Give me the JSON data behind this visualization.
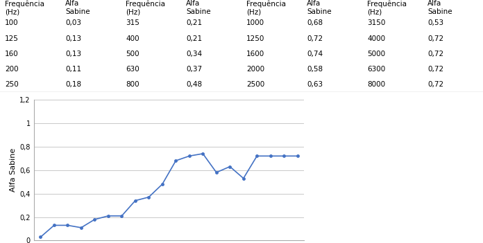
{
  "frequencies": [
    100,
    125,
    160,
    200,
    250,
    315,
    400,
    500,
    630,
    800,
    1000,
    1250,
    1600,
    2000,
    2500,
    3150,
    4000,
    5000,
    6300,
    8000
  ],
  "alpha_sabine": [
    0.03,
    0.13,
    0.13,
    0.11,
    0.18,
    0.21,
    0.21,
    0.34,
    0.37,
    0.48,
    0.68,
    0.72,
    0.74,
    0.58,
    0.63,
    0.53,
    0.72,
    0.72,
    0.72,
    0.72
  ],
  "table_data": {
    "freq1": [
      100,
      125,
      160,
      200,
      250
    ],
    "alpha1": [
      "0,03",
      "0,13",
      "0,13",
      "0,11",
      "0,18"
    ],
    "freq2": [
      315,
      400,
      500,
      630,
      800
    ],
    "alpha2": [
      "0,21",
      "0,21",
      "0,34",
      "0,37",
      "0,48"
    ],
    "freq3": [
      1000,
      1250,
      1600,
      2000,
      2500
    ],
    "alpha3": [
      "0,68",
      "0,72",
      "0,74",
      "0,58",
      "0,63"
    ],
    "freq4": [
      3150,
      4000,
      5000,
      6300,
      8000
    ],
    "alpha4": [
      "0,53",
      "0,72",
      "0,72",
      "0,72",
      "0,72"
    ]
  },
  "line_color": "#4472C4",
  "ylabel": "Alfa Sabine",
  "xlabel": "Frequência (Hz)",
  "ylim": [
    0,
    1.2
  ],
  "yticks": [
    0,
    0.2,
    0.4,
    0.6,
    0.8,
    1.0,
    1.2
  ],
  "bg_color": "#ffffff",
  "grid_color": "#c0c0c0",
  "table_header_col1": "Frequência\n(Hz)",
  "table_header_col2": "Alfa\nSabine"
}
